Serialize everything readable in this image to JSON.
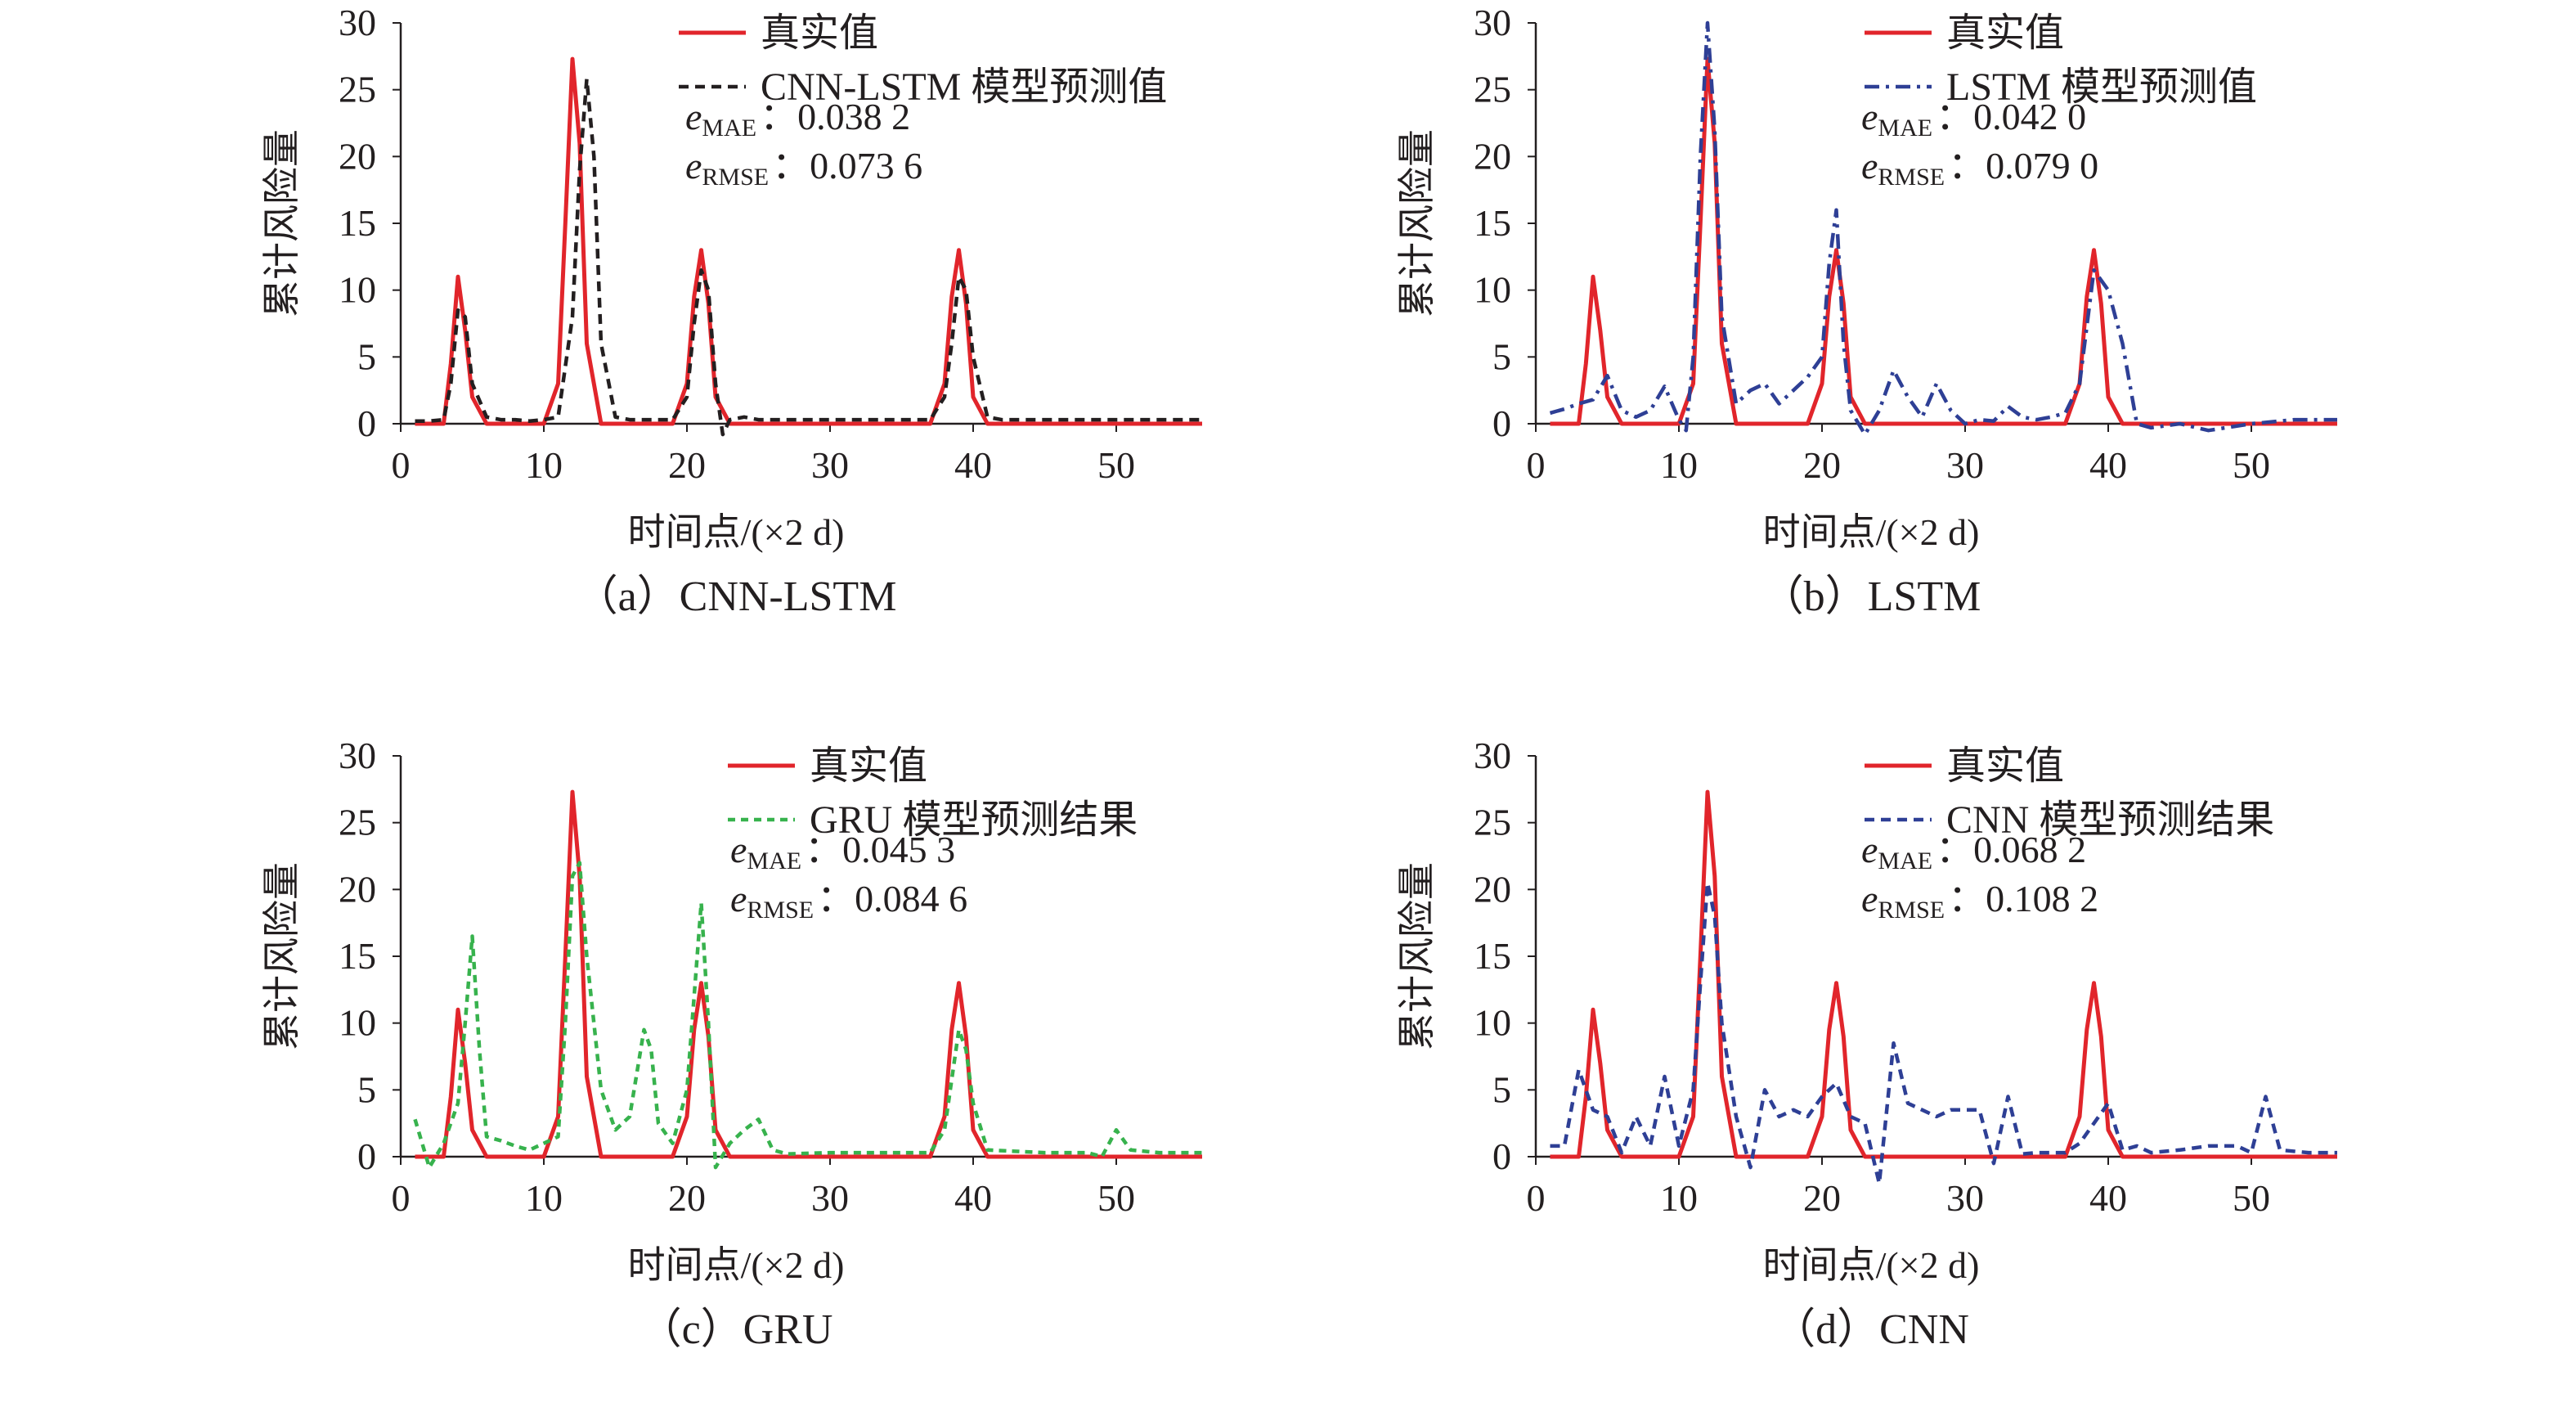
{
  "chart_data": [
    {
      "type": "line",
      "panel": "a",
      "caption": "（a）CNN-LSTM",
      "xlabel": "时间点/(×2 d)",
      "ylabel": "累计风险量",
      "xlim": [
        0,
        56
      ],
      "ylim": [
        0,
        30
      ],
      "xticks": [
        "0",
        "10",
        "20",
        "30",
        "40",
        "50"
      ],
      "yticks": [
        "0",
        "5",
        "10",
        "15",
        "20",
        "25",
        "30"
      ],
      "legend_position": "top-right",
      "metrics": {
        "mae_label": "e",
        "mae_sub": "MAE",
        "mae_value": "：0.038 2",
        "rmse_label": "e",
        "rmse_sub": "RMSE",
        "rmse_value": "：0.073 6"
      },
      "series": [
        {
          "name": "真实值",
          "color": "#e1252b",
          "dash": "solid",
          "x": [
            1,
            2,
            3,
            3.5,
            4,
            4.5,
            5,
            6,
            7,
            8,
            9,
            10,
            11,
            11.5,
            12,
            12.5,
            13,
            14,
            15,
            16,
            17,
            18,
            19,
            20,
            20.5,
            21,
            21.5,
            22,
            23,
            24,
            25,
            30,
            35,
            36,
            37,
            38,
            38.5,
            39,
            39.5,
            40,
            41,
            42,
            45,
            50,
            55,
            56
          ],
          "y": [
            0,
            0,
            0,
            4.5,
            11,
            7,
            2,
            0,
            0,
            0,
            0,
            0,
            3,
            15,
            27.3,
            21,
            6,
            0,
            0,
            0,
            0,
            0,
            0,
            3,
            9.5,
            13,
            9,
            2,
            0,
            0,
            0,
            0,
            0,
            0,
            0,
            3,
            9.5,
            13,
            9,
            2,
            0,
            0,
            0,
            0,
            0,
            0
          ]
        },
        {
          "name": "CNN-LSTM 模型预测值",
          "color": "#231f20",
          "dash": "12,8",
          "x": [
            1,
            2,
            3,
            3.5,
            4,
            4.5,
            5,
            6,
            7,
            8,
            9,
            10,
            11,
            12,
            12.5,
            13,
            13.5,
            14,
            15,
            16,
            17,
            18,
            19,
            20,
            20.5,
            21,
            21.5,
            22,
            22.5,
            23,
            24,
            25,
            27,
            30,
            35,
            37,
            38,
            38.5,
            39,
            39.5,
            40,
            41,
            42,
            45,
            50,
            55,
            56
          ],
          "y": [
            0.2,
            0.2,
            0.3,
            3,
            8.5,
            8,
            3,
            0.5,
            0.3,
            0.3,
            0.2,
            0.3,
            0.5,
            8,
            19,
            25.8,
            20,
            6,
            0.5,
            0.3,
            0.3,
            0.3,
            0.3,
            2,
            7.5,
            11.5,
            10,
            3,
            -0.8,
            0.3,
            0.5,
            0.3,
            0.3,
            0.3,
            0.3,
            0.3,
            2,
            6,
            11,
            10,
            5,
            0.5,
            0.3,
            0.3,
            0.3,
            0.3,
            0.3
          ]
        }
      ]
    },
    {
      "type": "line",
      "panel": "b",
      "caption": "（b）LSTM",
      "xlabel": "时间点/(×2 d)",
      "ylabel": "累计风险量",
      "xlim": [
        0,
        56
      ],
      "ylim": [
        0,
        30
      ],
      "xticks": [
        "0",
        "10",
        "20",
        "30",
        "40",
        "50"
      ],
      "yticks": [
        "0",
        "5",
        "10",
        "15",
        "20",
        "25",
        "30"
      ],
      "legend_position": "top-right",
      "metrics": {
        "mae_label": "e",
        "mae_sub": "MAE",
        "mae_value": "：0.042 0",
        "rmse_label": "e",
        "rmse_sub": "RMSE",
        "rmse_value": "：0.079 0"
      },
      "series": [
        {
          "name": "真实值",
          "color": "#e1252b",
          "dash": "solid",
          "x": [
            1,
            2,
            3,
            3.5,
            4,
            4.5,
            5,
            6,
            7,
            8,
            9,
            10,
            11,
            11.5,
            12,
            12.5,
            13,
            14,
            15,
            16,
            17,
            18,
            19,
            20,
            20.5,
            21,
            21.5,
            22,
            23,
            24,
            25,
            30,
            35,
            36,
            37,
            38,
            38.5,
            39,
            39.5,
            40,
            41,
            42,
            45,
            50,
            55,
            56
          ],
          "y": [
            0,
            0,
            0,
            4.5,
            11,
            7,
            2,
            0,
            0,
            0,
            0,
            0,
            3,
            15,
            27.3,
            21,
            6,
            0,
            0,
            0,
            0,
            0,
            0,
            3,
            9.5,
            13,
            9,
            2,
            0,
            0,
            0,
            0,
            0,
            0,
            0,
            3,
            9.5,
            13,
            9,
            2,
            0,
            0,
            0,
            0,
            0,
            0
          ]
        },
        {
          "name": "LSTM 模型预测值",
          "color": "#2e3f95",
          "dash": "18,8,4,8",
          "x": [
            1,
            2,
            3,
            4,
            5,
            6,
            7,
            8,
            9,
            10,
            10.5,
            11,
            11.5,
            12,
            12.5,
            13,
            14,
            15,
            16,
            17,
            18,
            19,
            20,
            20.5,
            21,
            21.5,
            22,
            23,
            24,
            25,
            26,
            27,
            28,
            29,
            30,
            31,
            32,
            33,
            34,
            35,
            36,
            37,
            38,
            39,
            40,
            41,
            42,
            43,
            45,
            47,
            50,
            53,
            56
          ],
          "y": [
            0.8,
            1.1,
            1.5,
            1.8,
            3.6,
            1,
            0.5,
            1,
            2.8,
            0.3,
            -0.5,
            5,
            20,
            30,
            22,
            8,
            1.5,
            2.5,
            3,
            1.5,
            2.5,
            3.5,
            5,
            12,
            16,
            6,
            1,
            -0.8,
            1,
            4,
            2,
            0.5,
            3,
            1,
            0,
            0.3,
            0.2,
            1.3,
            0.5,
            0.3,
            0.5,
            0.8,
            3,
            11.5,
            10,
            6,
            0,
            -0.3,
            0,
            -0.5,
            0,
            0.3,
            0.3
          ]
        }
      ]
    },
    {
      "type": "line",
      "panel": "c",
      "caption": "（c）GRU",
      "xlabel": "时间点/(×2 d)",
      "ylabel": "累计风险量",
      "xlim": [
        0,
        56
      ],
      "ylim": [
        0,
        30
      ],
      "xticks": [
        "0",
        "10",
        "20",
        "30",
        "40",
        "50"
      ],
      "yticks": [
        "0",
        "5",
        "10",
        "15",
        "20",
        "25",
        "30"
      ],
      "legend_position": "top-right",
      "metrics": {
        "mae_label": "e",
        "mae_sub": "MAE",
        "mae_value": "：0.045 3",
        "rmse_label": "e",
        "rmse_sub": "RMSE",
        "rmse_value": "：0.084 6"
      },
      "series": [
        {
          "name": "真实值",
          "color": "#e1252b",
          "dash": "solid",
          "x": [
            1,
            2,
            3,
            3.5,
            4,
            4.5,
            5,
            6,
            7,
            8,
            9,
            10,
            11,
            11.5,
            12,
            12.5,
            13,
            14,
            15,
            16,
            17,
            18,
            19,
            20,
            20.5,
            21,
            21.5,
            22,
            23,
            24,
            25,
            30,
            35,
            36,
            37,
            38,
            38.5,
            39,
            39.5,
            40,
            41,
            42,
            45,
            50,
            55,
            56
          ],
          "y": [
            0,
            0,
            0,
            4.5,
            11,
            7,
            2,
            0,
            0,
            0,
            0,
            0,
            3,
            15,
            27.3,
            21,
            6,
            0,
            0,
            0,
            0,
            0,
            0,
            3,
            9.5,
            13,
            9,
            2,
            0,
            0,
            0,
            0,
            0,
            0,
            0,
            3,
            9.5,
            13,
            9,
            2,
            0,
            0,
            0,
            0,
            0,
            0
          ]
        },
        {
          "name": "GRU 模型预测结果",
          "color": "#37b24d",
          "dash": "9,7",
          "x": [
            1,
            2,
            3,
            4,
            4.5,
            5,
            5.5,
            6,
            7,
            8,
            9,
            10,
            11,
            11.5,
            12,
            12.5,
            13,
            14,
            15,
            16,
            17,
            17.5,
            18,
            19,
            20,
            20.5,
            21,
            21.5,
            22,
            23,
            24,
            25,
            26,
            27,
            30,
            35,
            37,
            38,
            39,
            39.5,
            40,
            41,
            45,
            48,
            49,
            50,
            51,
            53,
            56
          ],
          "y": [
            2.8,
            -0.8,
            1,
            4,
            10,
            16.5,
            8,
            1.5,
            1.2,
            0.8,
            0.5,
            1,
            1.5,
            10,
            21,
            22,
            15,
            5,
            2,
            3,
            9.5,
            8,
            2.5,
            1,
            5,
            12,
            19,
            10,
            -0.8,
            1,
            2,
            2.8,
            0.5,
            0.2,
            0.3,
            0.3,
            0.3,
            2,
            9.5,
            8,
            4,
            0.5,
            0.3,
            0.3,
            0,
            2,
            0.5,
            0.3,
            0.3
          ]
        }
      ]
    },
    {
      "type": "line",
      "panel": "d",
      "caption": "（d）CNN",
      "xlabel": "时间点/(×2 d)",
      "ylabel": "累计风险量",
      "xlim": [
        0,
        56
      ],
      "ylim": [
        0,
        30
      ],
      "xticks": [
        "0",
        "10",
        "20",
        "30",
        "40",
        "50"
      ],
      "yticks": [
        "0",
        "5",
        "10",
        "15",
        "20",
        "25",
        "30"
      ],
      "legend_position": "top-right",
      "metrics": {
        "mae_label": "e",
        "mae_sub": "MAE",
        "mae_value": "：0.068 2",
        "rmse_label": "e",
        "rmse_sub": "RMSE",
        "rmse_value": "：0.108 2"
      },
      "series": [
        {
          "name": "真实值",
          "color": "#e1252b",
          "dash": "solid",
          "x": [
            1,
            2,
            3,
            3.5,
            4,
            4.5,
            5,
            6,
            7,
            8,
            9,
            10,
            11,
            11.5,
            12,
            12.5,
            13,
            14,
            15,
            16,
            17,
            18,
            19,
            20,
            20.5,
            21,
            21.5,
            22,
            23,
            24,
            25,
            30,
            35,
            36,
            37,
            38,
            38.5,
            39,
            39.5,
            40,
            41,
            42,
            45,
            50,
            55,
            56
          ],
          "y": [
            0,
            0,
            0,
            4.5,
            11,
            7,
            2,
            0,
            0,
            0,
            0,
            0,
            3,
            15,
            27.3,
            21,
            6,
            0,
            0,
            0,
            0,
            0,
            0,
            3,
            9.5,
            13,
            9,
            2,
            0,
            0,
            0,
            0,
            0,
            0,
            0,
            3,
            9.5,
            13,
            9,
            2,
            0,
            0,
            0,
            0,
            0,
            0
          ]
        },
        {
          "name": "CNN 模型预测结果",
          "color": "#2e3f95",
          "dash": "12,8",
          "x": [
            1,
            2,
            3,
            4,
            5,
            6,
            7,
            8,
            9,
            10,
            11,
            11.5,
            12,
            12.5,
            13,
            14,
            15,
            16,
            17,
            18,
            19,
            20,
            21,
            22,
            23,
            24,
            25,
            26,
            27,
            28,
            29,
            30,
            31,
            32,
            33,
            34,
            35,
            36,
            37,
            38,
            39,
            40,
            41,
            42,
            43,
            45,
            47,
            49,
            50,
            51,
            52,
            54,
            56
          ],
          "y": [
            0.8,
            0.8,
            6.5,
            3.5,
            3,
            0.3,
            3,
            0.8,
            6,
            0.8,
            5,
            13,
            20.5,
            18,
            10,
            3,
            -0.8,
            5,
            3,
            3.5,
            3,
            4.5,
            5.5,
            3,
            2.5,
            -2,
            8.5,
            4,
            3.5,
            3,
            3.5,
            3.5,
            3.5,
            -0.5,
            4.5,
            0.2,
            0.3,
            0.3,
            0.3,
            1,
            2.5,
            4,
            0.5,
            0.8,
            0.3,
            0.5,
            0.8,
            0.8,
            0.3,
            4.5,
            0.5,
            0.3,
            0.3
          ]
        }
      ]
    }
  ]
}
